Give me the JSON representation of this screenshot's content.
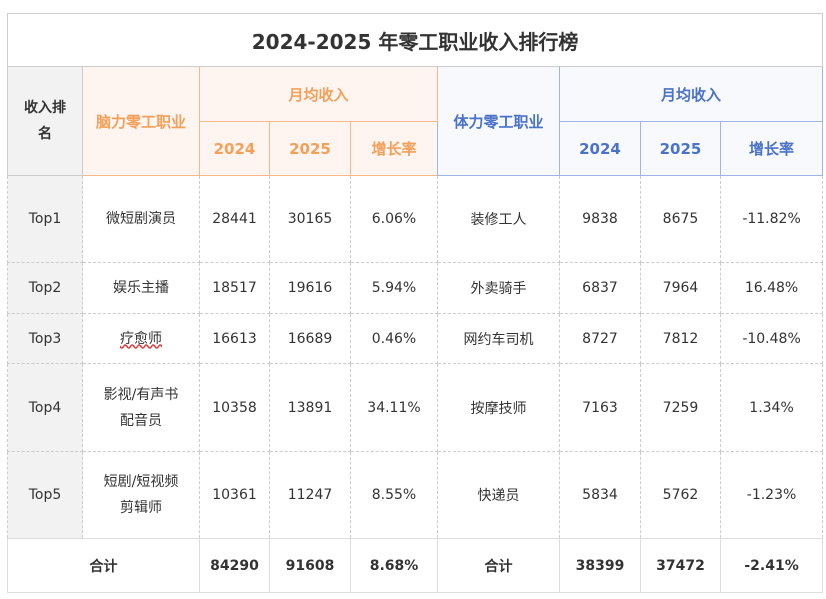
{
  "title": "2024-2025 年零工职业收入排行榜",
  "header": {
    "rank": "收入排名",
    "mental": "脑力零工职业",
    "physical": "体力零工职业",
    "monthly": "月均收入",
    "y2024": "2024",
    "y2025": "2025",
    "growth": "增长率"
  },
  "rows": [
    {
      "rank": "Top1",
      "mjob": "微短剧演员",
      "m24": "28441",
      "m25": "30165",
      "mg": "6.06%",
      "pjob": "装修工人",
      "p24": "9838",
      "p25": "8675",
      "pg": "-11.82%"
    },
    {
      "rank": "Top2",
      "mjob": "娱乐主播",
      "m24": "18517",
      "m25": "19616",
      "mg": "5.94%",
      "pjob": "外卖骑手",
      "p24": "6837",
      "p25": "7964",
      "pg": "16.48%"
    },
    {
      "rank": "Top3",
      "mjob": "疗愈师",
      "m24": "16613",
      "m25": "16689",
      "mg": "0.46%",
      "pjob": "网约车司机",
      "p24": "8727",
      "p25": "7812",
      "pg": "-10.48%"
    },
    {
      "rank": "Top4",
      "mjob": "影视/有声书配音员",
      "m24": "10358",
      "m25": "13891",
      "mg": "34.11%",
      "pjob": "按摩技师",
      "p24": "7163",
      "p25": "7259",
      "pg": "1.34%"
    },
    {
      "rank": "Top5",
      "mjob": "短剧/短视频剪辑师",
      "m24": "10361",
      "m25": "11247",
      "mg": "8.55%",
      "pjob": "快递员",
      "p24": "5834",
      "p25": "5762",
      "pg": "-1.23%"
    }
  ],
  "total": {
    "label": "合计",
    "m24": "84290",
    "m25": "91608",
    "mg": "8.68%",
    "plabel": "合计",
    "p24": "38399",
    "p25": "37472",
    "pg": "-2.41%"
  }
}
